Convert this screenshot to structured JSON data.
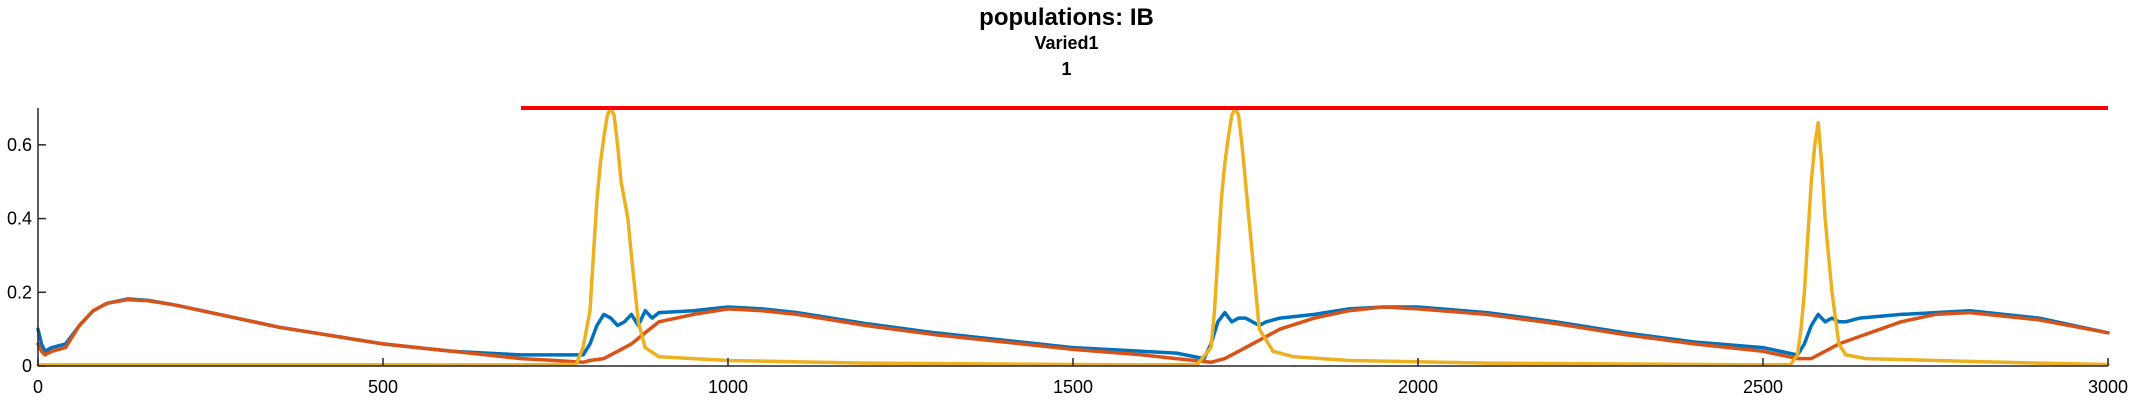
{
  "chart_data": {
    "type": "line",
    "title": "populations: IB",
    "subtitle_lines": [
      "Varied1",
      "1"
    ],
    "xlabel": "",
    "ylabel": "",
    "xlim": [
      0,
      3000
    ],
    "ylim": [
      0,
      0.7
    ],
    "x_ticks": [
      0,
      500,
      1000,
      1500,
      2000,
      2500,
      3000
    ],
    "x_tick_labels": [
      "0",
      "500",
      "1000",
      "1500",
      "2000",
      "2500",
      "3000"
    ],
    "y_ticks": [
      0,
      0.2,
      0.4,
      0.6
    ],
    "y_tick_labels": [
      "0",
      "0.2",
      "0.4",
      "0.6"
    ],
    "grid": false,
    "legend": "none",
    "colors": {
      "series_1": "#0072BD",
      "series_2": "#D95319",
      "series_3": "#EDB120",
      "threshold": "#FF0000",
      "axis": "#262626"
    },
    "series": [
      {
        "x": [
          0,
          5,
          10,
          20,
          40,
          60,
          80,
          100,
          130,
          160,
          200,
          250,
          300,
          350,
          400,
          450,
          500,
          550,
          600,
          650,
          700,
          750,
          790,
          800,
          810,
          820,
          830,
          840,
          850,
          860,
          870,
          880,
          890,
          900,
          950,
          1000,
          1050,
          1100,
          1150,
          1200,
          1300,
          1400,
          1500,
          1600,
          1650,
          1690,
          1700,
          1710,
          1720,
          1730,
          1740,
          1750,
          1760,
          1770,
          1780,
          1800,
          1850,
          1900,
          1950,
          2000,
          2100,
          2200,
          2300,
          2400,
          2500,
          2550,
          2560,
          2570,
          2580,
          2590,
          2600,
          2610,
          2620,
          2640,
          2700,
          2750,
          2800,
          2900,
          3000
        ],
        "values": [
          0.1,
          0.06,
          0.04,
          0.05,
          0.06,
          0.11,
          0.15,
          0.17,
          0.182,
          0.178,
          0.165,
          0.145,
          0.125,
          0.105,
          0.09,
          0.075,
          0.06,
          0.05,
          0.04,
          0.035,
          0.03,
          0.03,
          0.03,
          0.06,
          0.11,
          0.14,
          0.13,
          0.11,
          0.12,
          0.14,
          0.11,
          0.15,
          0.13,
          0.145,
          0.15,
          0.16,
          0.155,
          0.145,
          0.13,
          0.115,
          0.09,
          0.07,
          0.05,
          0.04,
          0.035,
          0.02,
          0.06,
          0.12,
          0.145,
          0.12,
          0.13,
          0.13,
          0.12,
          0.11,
          0.12,
          0.13,
          0.14,
          0.155,
          0.16,
          0.16,
          0.145,
          0.12,
          0.09,
          0.065,
          0.05,
          0.03,
          0.06,
          0.11,
          0.14,
          0.12,
          0.13,
          0.12,
          0.12,
          0.13,
          0.14,
          0.145,
          0.15,
          0.13,
          0.09
        ]
      },
      {
        "x": [
          0,
          5,
          10,
          20,
          40,
          60,
          80,
          100,
          130,
          160,
          200,
          250,
          300,
          350,
          400,
          450,
          500,
          550,
          600,
          650,
          700,
          750,
          790,
          800,
          820,
          840,
          860,
          880,
          900,
          950,
          1000,
          1050,
          1100,
          1150,
          1200,
          1300,
          1400,
          1500,
          1600,
          1650,
          1700,
          1720,
          1740,
          1760,
          1780,
          1800,
          1850,
          1900,
          1950,
          2000,
          2100,
          2200,
          2300,
          2400,
          2500,
          2550,
          2570,
          2590,
          2610,
          2640,
          2700,
          2750,
          2800,
          2900,
          3000
        ],
        "values": [
          0.06,
          0.04,
          0.03,
          0.04,
          0.05,
          0.11,
          0.15,
          0.17,
          0.18,
          0.177,
          0.165,
          0.145,
          0.125,
          0.105,
          0.09,
          0.075,
          0.06,
          0.05,
          0.04,
          0.03,
          0.02,
          0.015,
          0.01,
          0.015,
          0.02,
          0.04,
          0.06,
          0.09,
          0.12,
          0.14,
          0.155,
          0.15,
          0.14,
          0.125,
          0.11,
          0.085,
          0.065,
          0.045,
          0.03,
          0.02,
          0.01,
          0.02,
          0.04,
          0.06,
          0.08,
          0.1,
          0.13,
          0.15,
          0.16,
          0.155,
          0.14,
          0.115,
          0.085,
          0.06,
          0.04,
          0.02,
          0.02,
          0.04,
          0.06,
          0.08,
          0.12,
          0.14,
          0.145,
          0.125,
          0.09
        ]
      },
      {
        "x": [
          0,
          700,
          780,
          790,
          800,
          805,
          810,
          815,
          820,
          825,
          830,
          835,
          840,
          845,
          850,
          855,
          860,
          870,
          880,
          900,
          1000,
          1200,
          1600,
          1680,
          1700,
          1705,
          1710,
          1715,
          1720,
          1725,
          1730,
          1735,
          1740,
          1745,
          1750,
          1755,
          1760,
          1770,
          1790,
          1820,
          1900,
          2100,
          2500,
          2540,
          2550,
          2555,
          2560,
          2565,
          2570,
          2575,
          2580,
          2585,
          2590,
          2595,
          2600,
          2610,
          2620,
          2650,
          2750,
          2900,
          3000
        ],
        "values": [
          0.003,
          0.003,
          0.005,
          0.05,
          0.15,
          0.3,
          0.45,
          0.55,
          0.62,
          0.68,
          0.7,
          0.68,
          0.6,
          0.5,
          0.45,
          0.4,
          0.3,
          0.12,
          0.05,
          0.025,
          0.015,
          0.008,
          0.003,
          0.004,
          0.05,
          0.15,
          0.3,
          0.45,
          0.55,
          0.62,
          0.68,
          0.7,
          0.68,
          0.6,
          0.5,
          0.4,
          0.3,
          0.1,
          0.04,
          0.025,
          0.015,
          0.008,
          0.003,
          0.004,
          0.03,
          0.1,
          0.2,
          0.35,
          0.5,
          0.6,
          0.66,
          0.55,
          0.4,
          0.3,
          0.2,
          0.06,
          0.03,
          0.02,
          0.015,
          0.008,
          0.004
        ]
      }
    ],
    "annotations": [
      {
        "type": "hline",
        "y": 0.7,
        "x_start": 700,
        "x_end": 3000,
        "color": "#FF0000"
      }
    ]
  }
}
